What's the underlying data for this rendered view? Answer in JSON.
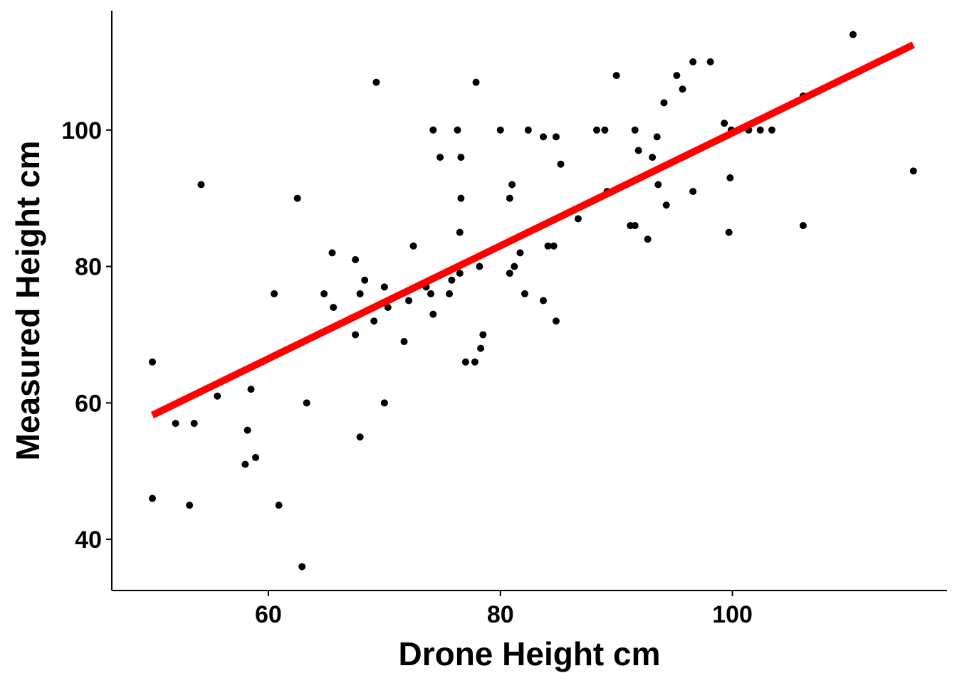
{
  "chart_data": {
    "type": "scatter",
    "xlabel": "Drone Height cm",
    "ylabel": "Measured Height cm",
    "xlim": [
      46.5,
      118.5
    ],
    "ylim": [
      32.5,
      117.5
    ],
    "x_ticks": [
      60,
      80,
      100
    ],
    "y_ticks": [
      40,
      60,
      80,
      100
    ],
    "grid": false,
    "point_color": "#000000",
    "fit_color": "#ff0000",
    "series": [
      {
        "values": [
          [
            50.0,
            66
          ],
          [
            50.0,
            46
          ],
          [
            52.0,
            57
          ],
          [
            53.2,
            45
          ],
          [
            53.6,
            57
          ],
          [
            54.2,
            92
          ],
          [
            55.6,
            61
          ],
          [
            58.0,
            51
          ],
          [
            58.2,
            56
          ],
          [
            58.5,
            62
          ],
          [
            58.9,
            52
          ],
          [
            60.5,
            76
          ],
          [
            60.9,
            45
          ],
          [
            62.5,
            90
          ],
          [
            62.9,
            36
          ],
          [
            63.3,
            60
          ],
          [
            64.8,
            76
          ],
          [
            65.5,
            82
          ],
          [
            65.6,
            74
          ],
          [
            67.5,
            81
          ],
          [
            67.5,
            70
          ],
          [
            67.9,
            76
          ],
          [
            67.9,
            55
          ],
          [
            68.3,
            78
          ],
          [
            69.1,
            72
          ],
          [
            69.3,
            107
          ],
          [
            70.0,
            77
          ],
          [
            70.0,
            60
          ],
          [
            70.3,
            74
          ],
          [
            71.7,
            69
          ],
          [
            72.1,
            75
          ],
          [
            72.5,
            83
          ],
          [
            73.6,
            77
          ],
          [
            74.0,
            76
          ],
          [
            74.2,
            73
          ],
          [
            74.2,
            100
          ],
          [
            74.8,
            96
          ],
          [
            75.6,
            76
          ],
          [
            75.8,
            78
          ],
          [
            76.3,
            100
          ],
          [
            76.5,
            85
          ],
          [
            76.5,
            79
          ],
          [
            76.6,
            90
          ],
          [
            76.6,
            96
          ],
          [
            77.0,
            66
          ],
          [
            77.8,
            66
          ],
          [
            77.9,
            107
          ],
          [
            78.2,
            80
          ],
          [
            78.3,
            68
          ],
          [
            78.5,
            70
          ],
          [
            80.0,
            100
          ],
          [
            80.8,
            79
          ],
          [
            80.8,
            90
          ],
          [
            81.0,
            92
          ],
          [
            81.2,
            80
          ],
          [
            81.7,
            82
          ],
          [
            82.1,
            76
          ],
          [
            82.4,
            100
          ],
          [
            83.7,
            75
          ],
          [
            83.7,
            99
          ],
          [
            84.1,
            83
          ],
          [
            84.6,
            83
          ],
          [
            84.8,
            72
          ],
          [
            84.8,
            99
          ],
          [
            85.2,
            95
          ],
          [
            86.7,
            87
          ],
          [
            88.3,
            100
          ],
          [
            89.0,
            100
          ],
          [
            89.2,
            91
          ],
          [
            90.0,
            108
          ],
          [
            91.2,
            86
          ],
          [
            91.6,
            86
          ],
          [
            91.6,
            100
          ],
          [
            91.9,
            97
          ],
          [
            92.7,
            84
          ],
          [
            93.1,
            96
          ],
          [
            93.5,
            99
          ],
          [
            93.6,
            92
          ],
          [
            94.1,
            104
          ],
          [
            94.3,
            89
          ],
          [
            95.2,
            108
          ],
          [
            95.7,
            106
          ],
          [
            96.6,
            91
          ],
          [
            96.6,
            110
          ],
          [
            98.1,
            110
          ],
          [
            99.3,
            101
          ],
          [
            99.7,
            85
          ],
          [
            99.8,
            93
          ],
          [
            99.9,
            100
          ],
          [
            101.4,
            100
          ],
          [
            102.4,
            100
          ],
          [
            103.4,
            100
          ],
          [
            106.1,
            105
          ],
          [
            106.1,
            86
          ],
          [
            110.4,
            114
          ],
          [
            115.6,
            94
          ]
        ]
      },
      {
        "type": "line",
        "values": [
          [
            50.0,
            58.2
          ],
          [
            115.6,
            112.5
          ]
        ]
      }
    ]
  }
}
